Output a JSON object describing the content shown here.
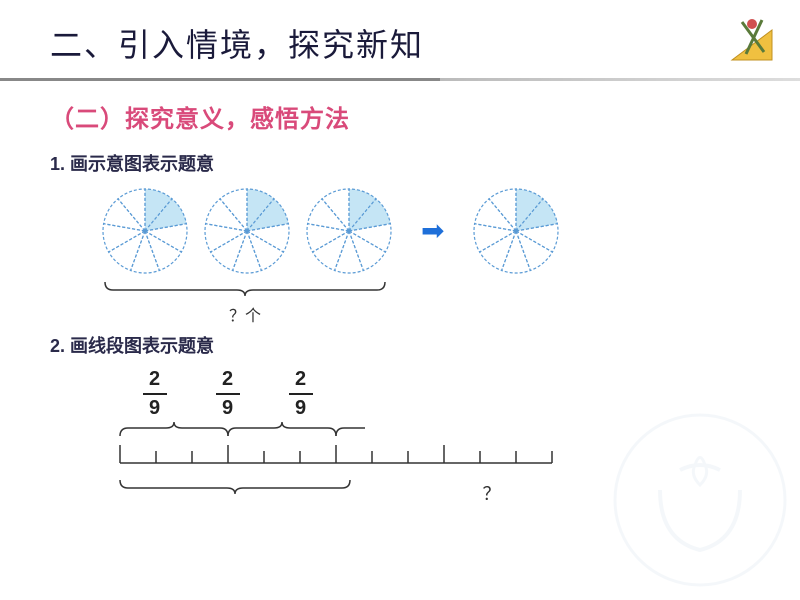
{
  "title": "二、引入情境，探究新知",
  "subtitle": "（二）探究意义，感悟方法",
  "section1_label": "1. 画示意图表示题意",
  "section2_label": "2. 画线段图表示题意",
  "brace1_label": "？个",
  "brace2_label": "？",
  "fraction": {
    "num": "2",
    "den": "9"
  },
  "pie": {
    "slices": 9,
    "highlighted": 2,
    "fill_color": "#c5e5f5",
    "stroke_color": "#5b9bd5",
    "stroke_dash": "3,2",
    "radius": 42
  },
  "arrow_color": "#1e6fd9",
  "numberline": {
    "total_ticks": 13,
    "highlighted_upto": 9,
    "segment_width": 36,
    "group_size": 3,
    "groups": 3,
    "tick_height_major": 18,
    "tick_height_minor": 12,
    "stroke": "#333333"
  },
  "brace_stroke": "#333333",
  "colors": {
    "title": "#1a1a3a",
    "subtitle": "#d94a7a",
    "body": "#2a2a4a",
    "divider": "#888888"
  },
  "corner_icon_colors": {
    "triangle": "#f0c040",
    "compass": "#5a7a3a",
    "accent": "#d05050"
  },
  "watermark_color": "#a0b8d0"
}
